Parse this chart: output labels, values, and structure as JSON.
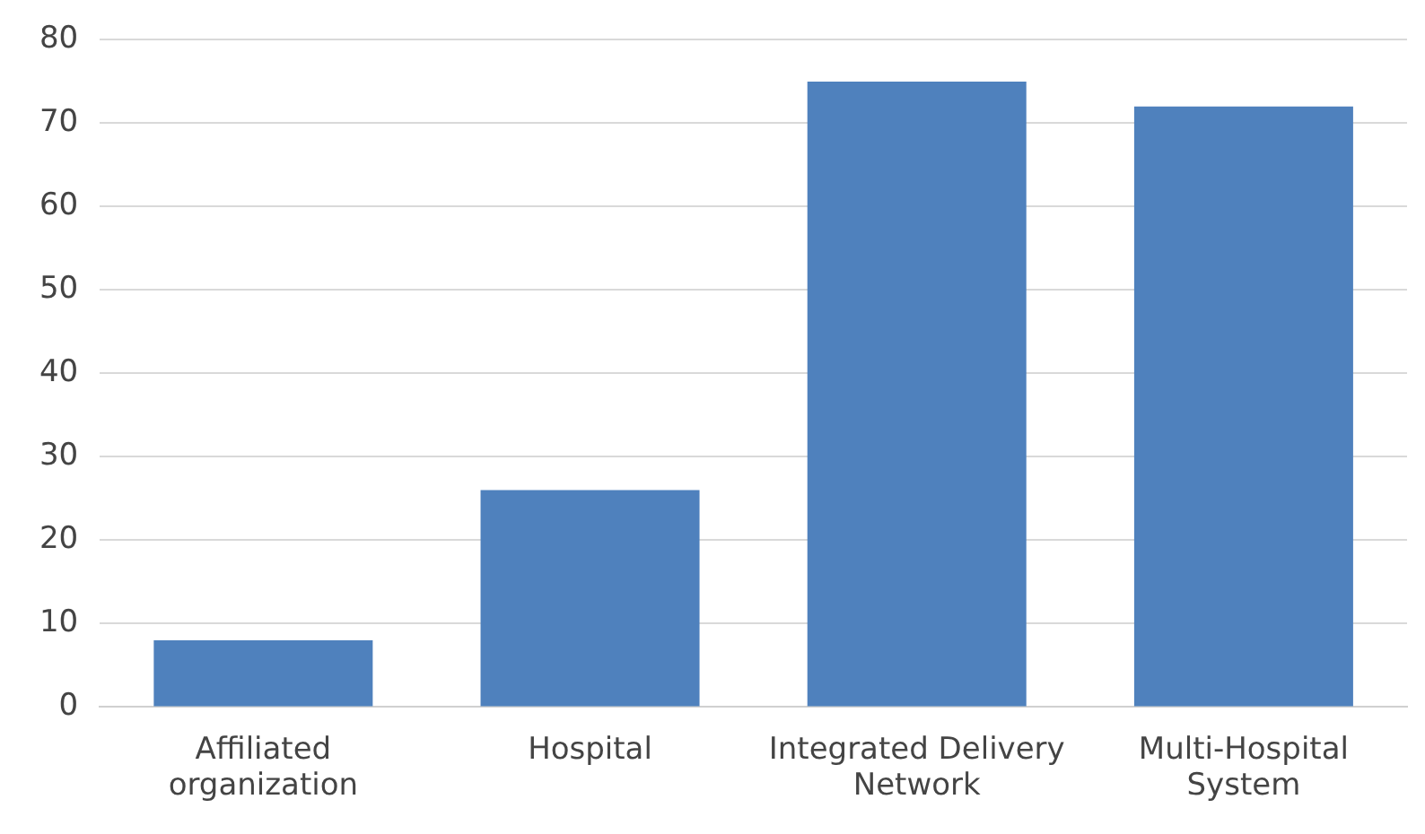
{
  "chart_data": {
    "type": "bar",
    "categories": [
      "Affiliated organization",
      "Hospital",
      "Integrated Delivery Network",
      "Multi-Hospital System"
    ],
    "values": [
      8,
      26,
      75,
      72
    ],
    "color": "#4f81bd",
    "ylim": [
      0,
      80
    ],
    "yticks": [
      0,
      10,
      20,
      30,
      40,
      50,
      60,
      70,
      80
    ],
    "grid": "y"
  }
}
